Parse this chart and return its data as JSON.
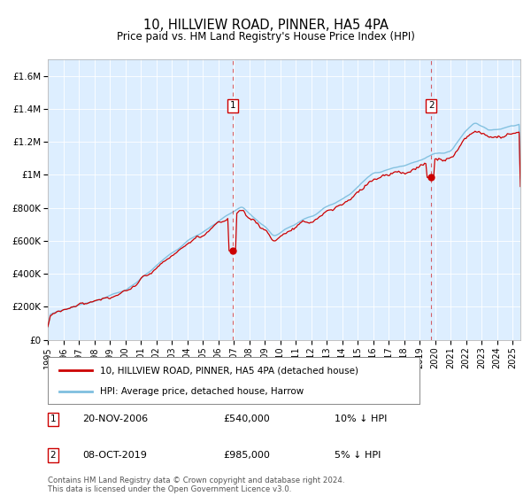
{
  "title": "10, HILLVIEW ROAD, PINNER, HA5 4PA",
  "subtitle": "Price paid vs. HM Land Registry's House Price Index (HPI)",
  "legend_line1": "10, HILLVIEW ROAD, PINNER, HA5 4PA (detached house)",
  "legend_line2": "HPI: Average price, detached house, Harrow",
  "marker1_date": "20-NOV-2006",
  "marker1_price": "£540,000",
  "marker1_hpi": "10% ↓ HPI",
  "marker2_date": "08-OCT-2019",
  "marker2_price": "£985,000",
  "marker2_hpi": "5% ↓ HPI",
  "footer": "Contains HM Land Registry data © Crown copyright and database right 2024.\nThis data is licensed under the Open Government Licence v3.0.",
  "ylim": [
    0,
    1700000
  ],
  "yticks": [
    0,
    200000,
    400000,
    600000,
    800000,
    1000000,
    1200000,
    1400000,
    1600000
  ],
  "ytick_labels": [
    "£0",
    "£200K",
    "£400K",
    "£600K",
    "£800K",
    "£1M",
    "£1.2M",
    "£1.4M",
    "£1.6M"
  ],
  "hpi_color": "#7fbfdf",
  "price_color": "#cc0000",
  "bg_color": "#ddeeff",
  "marker1_x": 2006.92,
  "marker1_y": 540000,
  "marker2_x": 2019.75,
  "marker2_y": 985000,
  "xmin": 1995,
  "xmax": 2025.5
}
